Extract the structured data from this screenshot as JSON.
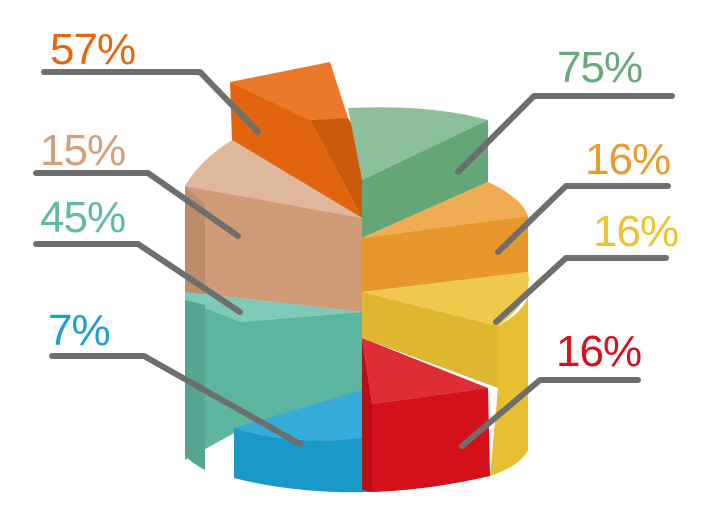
{
  "chart_data": {
    "type": "pie",
    "variant": "3d-stacked-cylinder",
    "title": "",
    "legend": "none",
    "slices": [
      {
        "label": "57%",
        "value": 57,
        "color": "#E8660E"
      },
      {
        "label": "75%",
        "value": 75,
        "color": "#67A97A"
      },
      {
        "label": "15%",
        "value": 15,
        "color": "#D4A07A"
      },
      {
        "label": "16%",
        "value": 16,
        "color": "#EC9A2C"
      },
      {
        "label": "45%",
        "value": 45,
        "color": "#5FBBA6"
      },
      {
        "label": "16%",
        "value": 16,
        "color": "#EDC233"
      },
      {
        "label": "7%",
        "value": 7,
        "color": "#1BA0D2"
      },
      {
        "label": "16%",
        "value": 16,
        "color": "#D8101C"
      }
    ]
  },
  "leader_line_color": "#6E6E6E"
}
